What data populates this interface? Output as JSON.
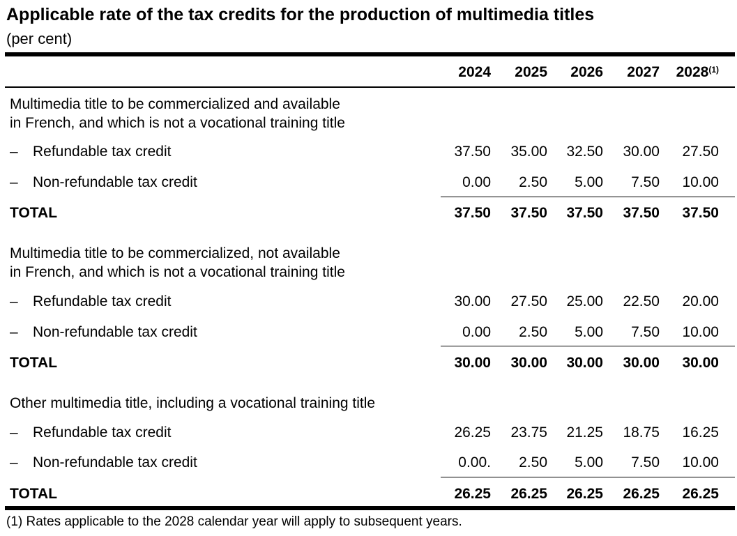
{
  "title": "Applicable rate of the tax credits for the production of multimedia titles",
  "subtitle": "(per cent)",
  "years": [
    "2024",
    "2025",
    "2026",
    "2027",
    "2028"
  ],
  "footnote_marker": "(1)",
  "sections": [
    {
      "heading_line1": "Multimedia title to be commercialized and available",
      "heading_line2": "in French, and which is not a vocational training title",
      "dash": "–",
      "refundable_label": "Refundable tax credit",
      "refundable": [
        "37.50",
        "35.00",
        "32.50",
        "30.00",
        "27.50"
      ],
      "nonrefundable_label": "Non-refundable tax credit",
      "nonrefundable": [
        "0.00",
        "2.50",
        "5.00",
        "7.50",
        "10.00"
      ],
      "total_label": "TOTAL",
      "total": [
        "37.50",
        "37.50",
        "37.50",
        "37.50",
        "37.50"
      ]
    },
    {
      "heading_line1": "Multimedia title to be commercialized, not available",
      "heading_line2": "in French, and which is not a vocational training title",
      "dash": "–",
      "refundable_label": "Refundable tax credit",
      "refundable": [
        "30.00",
        "27.50",
        "25.00",
        "22.50",
        "20.00"
      ],
      "nonrefundable_label": "Non-refundable tax credit",
      "nonrefundable": [
        "0.00",
        "2.50",
        "5.00",
        "7.50",
        "10.00"
      ],
      "total_label": "TOTAL",
      "total": [
        "30.00",
        "30.00",
        "30.00",
        "30.00",
        "30.00"
      ]
    },
    {
      "heading_line1": "Other multimedia title, including a vocational training title",
      "dash": "–",
      "refundable_label": "Refundable tax credit",
      "refundable": [
        "26.25",
        "23.75",
        "21.25",
        "18.75",
        "16.25"
      ],
      "nonrefundable_label": "Non-refundable tax credit",
      "nonrefundable": [
        "0.00.",
        "2.50",
        "5.00",
        "7.50",
        "10.00"
      ],
      "total_label": "TOTAL",
      "total": [
        "26.25",
        "26.25",
        "26.25",
        "26.25",
        "26.25"
      ]
    }
  ],
  "footnote": "(1) Rates applicable to the 2028 calendar year will apply to subsequent years."
}
